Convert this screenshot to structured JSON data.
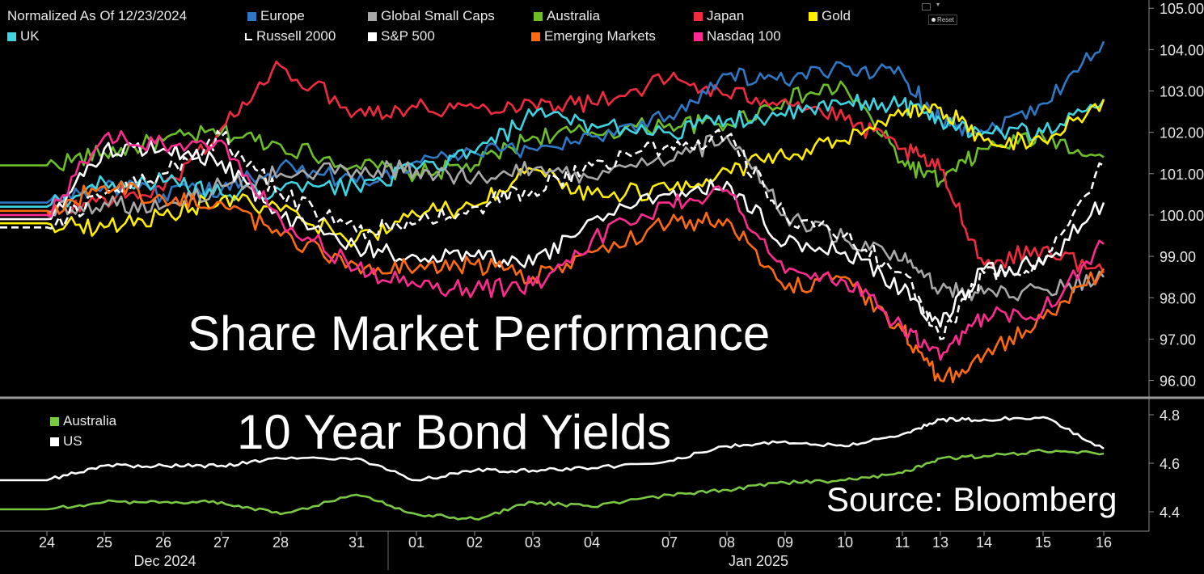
{
  "colors": {
    "Europe": "#2f78c4",
    "Global Small Caps": "#a8a8a8",
    "Australia": "#6cbf26",
    "Japan": "#f02a3f",
    "Gold": "#ffee00",
    "UK": "#3ed4e2",
    "Russell 2000": "#ffffff",
    "S&P 500": "#ffffff",
    "Emerging Markets": "#ff6a10",
    "Nasdaq 100": "#ff2a90",
    "Bond Australia": "#7ac943",
    "Bond US": "#ffffff"
  },
  "ui": {
    "reset_label": "Reset",
    "source": "Source: Bloomberg"
  },
  "chart_data": [
    {
      "type": "line",
      "title": "Share Market Performance",
      "legend_header": "Normalized As Of 12/23/2024",
      "legend": [
        "Europe",
        "Global Small Caps",
        "Australia",
        "Japan",
        "Gold",
        "UK",
        "Russell 2000",
        "S&P 500",
        "Emerging Markets",
        "Nasdaq 100"
      ],
      "x": [
        "24",
        "25",
        "26",
        "27",
        "28",
        "31",
        "01",
        "02",
        "03",
        "04",
        "07",
        "08",
        "09",
        "10",
        "11",
        "13",
        "14",
        "15",
        "16"
      ],
      "x_groups": [
        {
          "label": "Dec 2024"
        },
        {
          "label": "Jan 2025"
        }
      ],
      "ylim": [
        95.6,
        105.2
      ],
      "yticks": [
        "105.00",
        "104.00",
        "103.00",
        "102.00",
        "101.00",
        "100.00",
        "99.00",
        "98.00",
        "97.00",
        "96.00"
      ],
      "series": [
        {
          "name": "Australia",
          "values": [
            101.2,
            101.5,
            101.8,
            102.0,
            101.7,
            101.2,
            101.0,
            101.2,
            101.9,
            102.0,
            102.2,
            102.2,
            102.8,
            103.1,
            101.3,
            100.8,
            101.6,
            101.9,
            101.4
          ]
        },
        {
          "name": "Japan",
          "values": [
            100.0,
            100.4,
            100.6,
            102.1,
            103.6,
            102.5,
            102.6,
            102.6,
            102.7,
            102.7,
            103.3,
            102.9,
            102.8,
            102.3,
            101.6,
            101.1,
            98.8,
            99.2,
            98.6
          ]
        },
        {
          "name": "Europe",
          "values": [
            100.3,
            100.7,
            100.5,
            100.6,
            101.2,
            100.8,
            101.3,
            101.5,
            101.6,
            101.9,
            102.4,
            103.4,
            103.2,
            103.6,
            103.4,
            102.3,
            102.0,
            102.7,
            104.2
          ]
        },
        {
          "name": "UK",
          "values": [
            100.2,
            100.8,
            100.8,
            100.5,
            100.6,
            100.7,
            101.1,
            101.5,
            102.4,
            102.2,
            102.0,
            102.3,
            102.4,
            102.7,
            102.7,
            102.3,
            102.0,
            102.0,
            102.8
          ]
        },
        {
          "name": "Gold",
          "values": [
            99.8,
            99.7,
            100.0,
            100.4,
            100.1,
            99.4,
            100.0,
            100.2,
            101.1,
            100.5,
            100.6,
            101.1,
            101.4,
            101.8,
            102.4,
            102.6,
            101.8,
            101.8,
            102.8
          ]
        },
        {
          "name": "Global Small Caps",
          "values": [
            100.1,
            100.3,
            100.2,
            100.7,
            101.0,
            101.1,
            101.1,
            100.9,
            101.1,
            100.9,
            101.3,
            101.9,
            100.0,
            99.4,
            98.9,
            98.2,
            98.1,
            98.2,
            98.5
          ]
        },
        {
          "name": "Russell 2000",
          "values": [
            99.7,
            100.5,
            101.0,
            101.9,
            100.5,
            99.6,
            99.8,
            100.2,
            100.6,
            101.2,
            101.7,
            101.9,
            100.0,
            99.5,
            98.6,
            97.0,
            98.6,
            98.8,
            101.2
          ]
        },
        {
          "name": "S&P 500",
          "values": [
            99.9,
            101.6,
            101.6,
            101.3,
            99.9,
            99.2,
            99.0,
            99.0,
            98.8,
            99.9,
            100.5,
            100.8,
            99.3,
            99.1,
            98.2,
            97.3,
            98.7,
            98.8,
            100.3
          ]
        },
        {
          "name": "Emerging Markets",
          "values": [
            100.1,
            100.7,
            100.4,
            100.3,
            99.5,
            98.8,
            98.7,
            98.8,
            98.5,
            99.1,
            99.8,
            99.9,
            98.2,
            98.5,
            97.2,
            96.0,
            96.6,
            97.5,
            98.7
          ]
        },
        {
          "name": "Nasdaq 100",
          "values": [
            100.0,
            101.9,
            101.7,
            101.8,
            99.9,
            98.7,
            98.3,
            98.2,
            98.3,
            99.4,
            100.3,
            100.6,
            98.6,
            98.4,
            97.3,
            96.5,
            97.6,
            97.7,
            99.3
          ]
        }
      ]
    },
    {
      "type": "line",
      "title": "10 Year Bond Yields",
      "legend": [
        "Australia",
        "US"
      ],
      "ylim": [
        4.32,
        4.86
      ],
      "yticks": [
        "4.8",
        "4.6",
        "4.4"
      ],
      "series": [
        {
          "name": "Australia",
          "values": [
            4.41,
            4.44,
            4.44,
            4.44,
            4.39,
            4.47,
            4.39,
            4.37,
            4.44,
            4.42,
            4.47,
            4.49,
            4.52,
            4.53,
            4.56,
            4.62,
            4.63,
            4.65,
            4.64
          ]
        },
        {
          "name": "US",
          "values": [
            4.53,
            4.59,
            4.59,
            4.59,
            4.62,
            4.62,
            4.53,
            4.57,
            4.57,
            4.58,
            4.61,
            4.67,
            4.69,
            4.67,
            4.72,
            4.78,
            4.78,
            4.79,
            4.66
          ]
        }
      ]
    }
  ]
}
